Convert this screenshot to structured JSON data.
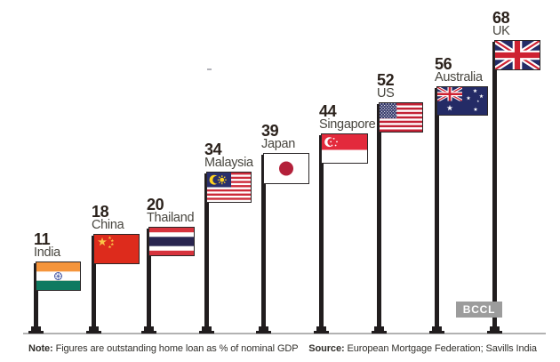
{
  "chart_data": {
    "type": "bar",
    "title": "",
    "categories": [
      "India",
      "China",
      "Thailand",
      "Malaysia",
      "Japan",
      "Singapore",
      "US",
      "Australia",
      "UK"
    ],
    "values": [
      11,
      18,
      20,
      34,
      39,
      44,
      52,
      56,
      68
    ],
    "value_meaning": "Outstanding home loan as % of nominal GDP",
    "ylim": [
      0,
      68
    ],
    "grid": false,
    "legend": "none",
    "note": {
      "label": "Note:",
      "text": "Figures are outstanding home loan as % of nominal GDP"
    },
    "source": {
      "label": "Source:",
      "text": "European Mortgage Federation; Savills India"
    }
  },
  "watermark": {
    "text": "BCCL"
  },
  "icons": [
    "india-flag-icon",
    "china-flag-icon",
    "thailand-flag-icon",
    "malaysia-flag-icon",
    "japan-flag-icon",
    "singapore-flag-icon",
    "us-flag-icon",
    "australia-flag-icon",
    "uk-flag-icon"
  ],
  "colors": {
    "background": "#ffffff",
    "pole": "#211d1e",
    "baseline": "#b2b2b2",
    "value_text": "#2b221c",
    "label_text": "#48463f",
    "note_text": "#32302c",
    "watermark_bg": "#9c9c9c",
    "watermark_text": "#ffffff",
    "flag_red": "#ce2131",
    "flag_navy": "#242b66"
  }
}
